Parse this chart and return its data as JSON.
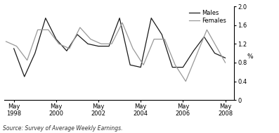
{
  "source": "Source: Survey of Average Weekly Earnings.",
  "ylabel": "%",
  "ylim": [
    0,
    2.0
  ],
  "yticks": [
    0,
    0.4,
    0.8,
    1.2,
    1.6,
    2.0
  ],
  "ytick_labels": [
    "0",
    "0.4",
    "0.8",
    "1.2",
    "1.6",
    "2.0"
  ],
  "xtick_positions": [
    1998.37,
    2000.37,
    2002.37,
    2004.37,
    2006.37,
    2008.37
  ],
  "xtick_labels": [
    "May\n1998",
    "May\n2000",
    "May\n2002",
    "May\n2004",
    "May\n2006",
    "May\n2008"
  ],
  "males_color": "#1a1a1a",
  "females_color": "#999999",
  "background_color": "#ffffff",
  "xlim": [
    1997.9,
    2008.8
  ],
  "males_x": [
    1998.37,
    1998.87,
    1999.37,
    1999.87,
    2000.37,
    2000.87,
    2001.37,
    2001.87,
    2002.37,
    2002.87,
    2003.37,
    2003.87,
    2004.37,
    2004.87,
    2005.37,
    2005.87,
    2006.37,
    2006.87,
    2007.37,
    2007.87,
    2008.37
  ],
  "males_y": [
    1.1,
    0.5,
    1.0,
    1.75,
    1.3,
    1.05,
    1.4,
    1.2,
    1.15,
    1.15,
    1.75,
    0.75,
    0.7,
    1.75,
    1.4,
    0.7,
    0.7,
    1.05,
    1.35,
    1.0,
    0.9
  ],
  "females_x": [
    1998.0,
    1998.5,
    1999.0,
    1999.5,
    2000.0,
    2000.5,
    2001.0,
    2001.5,
    2002.0,
    2002.5,
    2003.0,
    2003.5,
    2004.0,
    2004.5,
    2005.0,
    2005.5,
    2006.0,
    2006.5,
    2007.0,
    2007.5,
    2008.0,
    2008.37
  ],
  "females_y": [
    1.25,
    1.15,
    0.85,
    1.5,
    1.5,
    1.2,
    1.1,
    1.55,
    1.3,
    1.2,
    1.2,
    1.65,
    1.1,
    0.75,
    1.3,
    1.3,
    0.75,
    0.4,
    0.95,
    1.5,
    1.1,
    0.8
  ],
  "legend_males": "Males",
  "legend_females": "Females"
}
